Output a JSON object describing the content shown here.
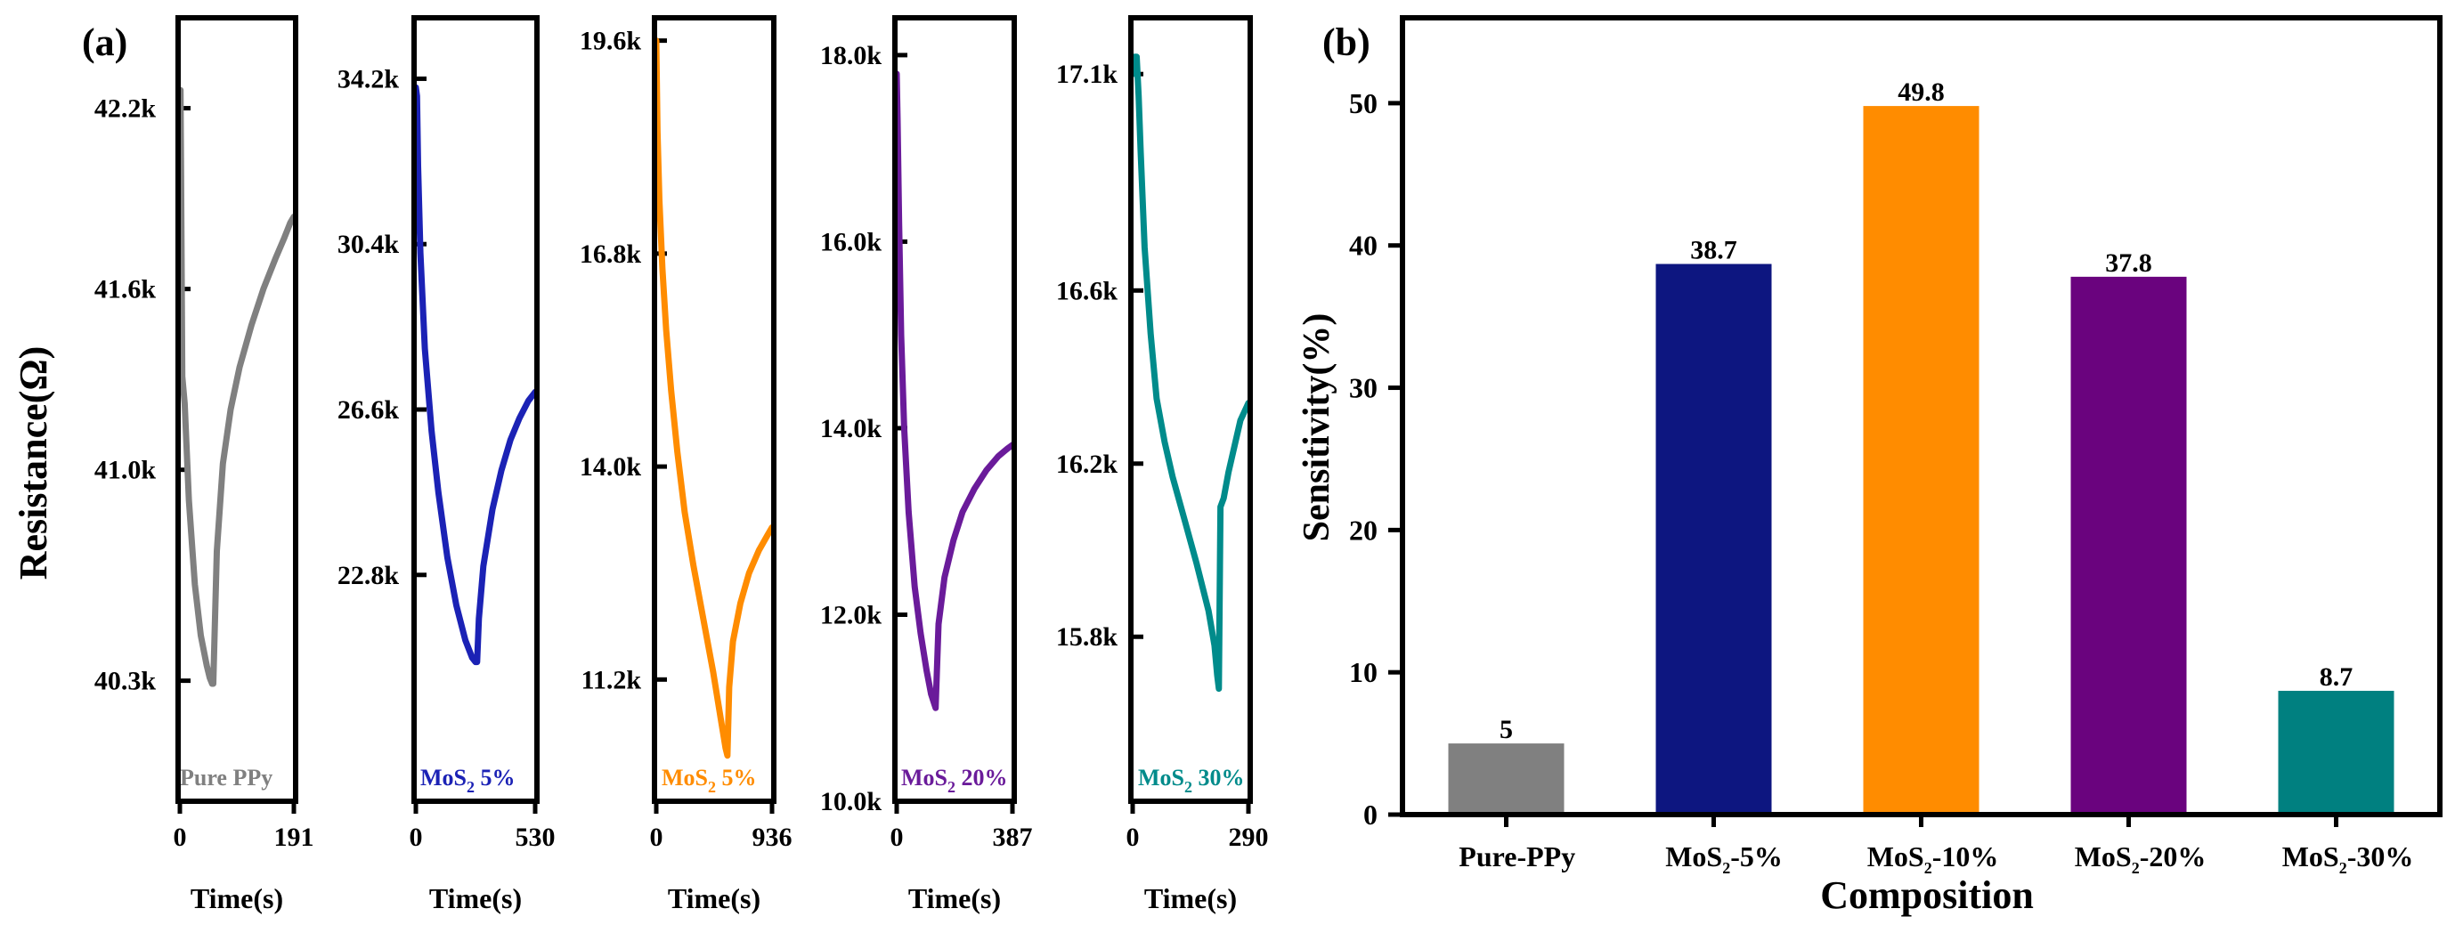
{
  "panel_a_label": "(a)",
  "panel_b_label": "(b)",
  "chart_data": [
    {
      "type": "line",
      "title": "",
      "ylabel": "Resistance(Ω)",
      "label": "Pure PPy",
      "xlabel": "Time(s)",
      "color": "#808080",
      "xlim": [
        0,
        191
      ],
      "xticks": [
        0,
        191
      ],
      "ylim": [
        39.9,
        42.5
      ],
      "yticks": [
        40.3,
        41.0,
        41.6,
        42.2
      ],
      "ytick_labels": [
        "40.3k",
        "41.0k",
        "41.6k",
        "42.2k"
      ],
      "x": [
        0,
        1,
        2,
        4,
        8,
        15,
        25,
        35,
        45,
        50,
        54,
        56,
        62,
        72,
        85,
        100,
        120,
        140,
        160,
        175,
        185,
        191
      ],
      "y": [
        42.26,
        42.26,
        42.0,
        41.31,
        41.22,
        40.9,
        40.62,
        40.45,
        40.35,
        40.31,
        40.29,
        40.29,
        40.73,
        41.02,
        41.2,
        41.34,
        41.48,
        41.6,
        41.7,
        41.77,
        41.82,
        41.84
      ]
    },
    {
      "type": "line",
      "title": "",
      "label": "MoS₂ 5%",
      "xlabel": "Time(s)",
      "color": "#1b22b5",
      "xlim": [
        0,
        530
      ],
      "xticks": [
        0,
        530
      ],
      "ylim": [
        17.6,
        35.6
      ],
      "yticks": [
        22.8,
        26.6,
        30.4,
        34.2
      ],
      "ytick_labels": [
        "22.8k",
        "26.6k",
        "30.4k",
        "34.2k"
      ],
      "x": [
        0,
        5,
        10,
        20,
        40,
        70,
        100,
        140,
        180,
        220,
        250,
        265,
        272,
        280,
        300,
        340,
        380,
        420,
        460,
        500,
        530
      ],
      "y": [
        34.0,
        33.8,
        32.2,
        30.2,
        28.0,
        26.1,
        24.7,
        23.2,
        22.1,
        21.3,
        20.9,
        20.8,
        20.8,
        21.8,
        23.0,
        24.3,
        25.2,
        25.9,
        26.4,
        26.8,
        27.0
      ]
    },
    {
      "type": "line",
      "title": "",
      "label": "MoS₂ 5%",
      "xlabel": "Time(s)",
      "color": "#ff8c00",
      "xlim": [
        0,
        936
      ],
      "xticks": [
        0,
        936
      ],
      "ylim": [
        9.6,
        19.9
      ],
      "yticks": [
        11.2,
        14.0,
        16.8,
        19.6
      ],
      "ytick_labels": [
        "11.2k",
        "14.0k",
        "16.8k",
        "19.6k"
      ],
      "x": [
        0,
        10,
        25,
        50,
        80,
        120,
        170,
        230,
        300,
        380,
        460,
        520,
        560,
        575,
        590,
        620,
        680,
        750,
        830,
        900,
        936
      ],
      "y": [
        19.6,
        18.4,
        17.5,
        16.6,
        15.8,
        15.0,
        14.2,
        13.4,
        12.7,
        12.0,
        11.3,
        10.7,
        10.3,
        10.2,
        11.1,
        11.7,
        12.2,
        12.6,
        12.9,
        13.1,
        13.2
      ]
    },
    {
      "type": "line",
      "title": "",
      "label": "MoS₂ 20%",
      "xlabel": "Time(s)",
      "color": "#6a1b9a",
      "xlim": [
        0,
        387
      ],
      "xticks": [
        0,
        387
      ],
      "ylim": [
        10.0,
        18.4
      ],
      "yticks": [
        10.0,
        12.0,
        14.0,
        16.0,
        18.0
      ],
      "ytick_labels": [
        "10.0k",
        "12.0k",
        "14.0k",
        "16.0k",
        "18.0k"
      ],
      "x": [
        0,
        3,
        8,
        15,
        25,
        40,
        60,
        80,
        100,
        115,
        125,
        130,
        140,
        160,
        190,
        220,
        260,
        300,
        340,
        370,
        387
      ],
      "y": [
        17.8,
        17.3,
        16.2,
        15.0,
        14.0,
        13.1,
        12.3,
        11.8,
        11.4,
        11.15,
        11.05,
        11.0,
        11.9,
        12.4,
        12.8,
        13.1,
        13.35,
        13.55,
        13.7,
        13.78,
        13.82
      ]
    },
    {
      "type": "line",
      "title": "",
      "label": "MoS₂ 30%",
      "xlabel": "Time(s)",
      "color": "#008b8b",
      "xlim": [
        0,
        290
      ],
      "xticks": [
        0,
        290
      ],
      "ylim": [
        15.42,
        17.23
      ],
      "yticks": [
        15.8,
        16.2,
        16.6,
        17.1
      ],
      "ytick_labels": [
        "15.8k",
        "16.2k",
        "16.6k",
        "17.1k"
      ],
      "x": [
        0,
        5,
        10,
        15,
        20,
        30,
        45,
        60,
        80,
        100,
        130,
        160,
        190,
        205,
        212,
        216,
        220,
        228,
        240,
        255,
        270,
        290
      ],
      "y": [
        17.1,
        17.14,
        17.14,
        17.05,
        16.92,
        16.7,
        16.5,
        16.35,
        16.25,
        16.17,
        16.07,
        15.97,
        15.86,
        15.78,
        15.71,
        15.68,
        16.1,
        16.12,
        16.18,
        16.24,
        16.3,
        16.34
      ]
    },
    {
      "type": "bar",
      "title": "",
      "xlabel": "Composition",
      "ylabel": "Sensitivity(%)",
      "categories": [
        "Pure-PPy",
        "MoS₂-5%",
        "MoS₂-10%",
        "MoS₂-20%",
        "MoS₂-30%"
      ],
      "values": [
        5,
        38.7,
        49.8,
        37.8,
        8.7
      ],
      "data_labels": [
        "5",
        "38.7",
        "49.8",
        "37.8",
        "8.7"
      ],
      "colors": [
        "#808080",
        "#0d1680",
        "#ff8c00",
        "#6a037e",
        "#008080"
      ],
      "ylim": [
        0,
        56
      ],
      "yticks": [
        0,
        10,
        20,
        30,
        40,
        50
      ],
      "grid": false
    }
  ]
}
